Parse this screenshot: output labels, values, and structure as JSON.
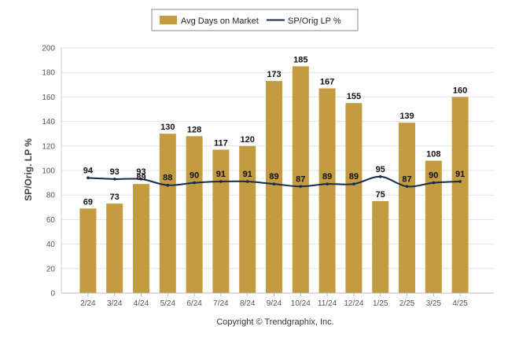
{
  "chart_data": {
    "type": "bar",
    "categories": [
      "2/24",
      "3/24",
      "4/24",
      "5/24",
      "6/24",
      "7/24",
      "8/24",
      "9/24",
      "10/24",
      "11/24",
      "12/24",
      "1/25",
      "2/25",
      "3/25",
      "4/25"
    ],
    "series": [
      {
        "name": "Avg Days on Market",
        "type": "bar",
        "color": "#c39b41",
        "values": [
          69,
          73,
          89,
          130,
          128,
          117,
          120,
          173,
          185,
          167,
          155,
          75,
          139,
          108,
          160
        ]
      },
      {
        "name": "SP/Orig LP %",
        "type": "line",
        "color": "#142b4a",
        "values": [
          94,
          93,
          93,
          88,
          90,
          91,
          91,
          89,
          87,
          89,
          89,
          95,
          87,
          90,
          91
        ]
      }
    ],
    "ylabel": "SP/Orig. LP %",
    "xlabel": "",
    "ylim": [
      0,
      200
    ],
    "yticks": [
      0,
      20,
      40,
      60,
      80,
      100,
      120,
      140,
      160,
      180,
      200
    ],
    "grid": true,
    "legend": "top-center"
  },
  "footer": {
    "copyright": "Copyright © Trendgraphix, Inc."
  }
}
